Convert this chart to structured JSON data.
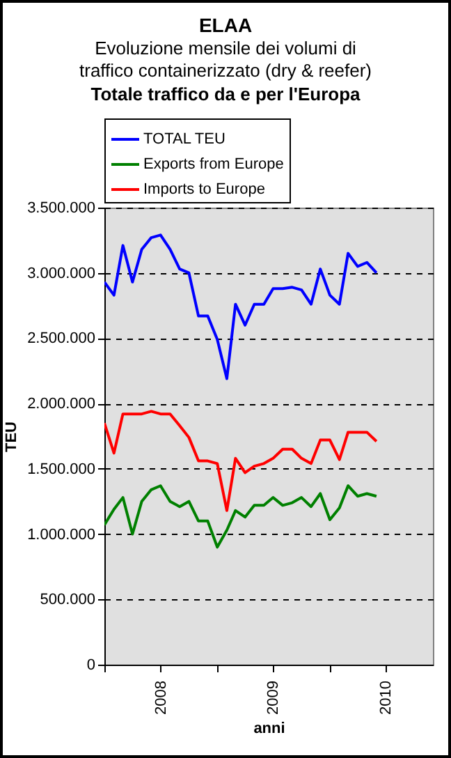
{
  "chart_data": {
    "type": "line",
    "title": "ELAA",
    "subtitle": "Evoluzione mensile dei volumi di traffico containerizzato (dry & reefer)",
    "annotations": [
      "Totale traffico da e per l'Europa"
    ],
    "xlabel": "anni",
    "ylabel": "TEU",
    "x": [
      "2008-01",
      "2008-02",
      "2008-03",
      "2008-04",
      "2008-05",
      "2008-06",
      "2008-07",
      "2008-08",
      "2008-09",
      "2008-10",
      "2008-11",
      "2008-12",
      "2009-01",
      "2009-02",
      "2009-03",
      "2009-04",
      "2009-05",
      "2009-06",
      "2009-07",
      "2009-08",
      "2009-09",
      "2009-10",
      "2009-11",
      "2009-12",
      "2010-01",
      "2010-02",
      "2010-03",
      "2010-04",
      "2010-05",
      "2010-06"
    ],
    "series": [
      {
        "name": "TOTAL TEU",
        "color": "#0000ff",
        "values": [
          2930000,
          2830000,
          3210000,
          2930000,
          3180000,
          3270000,
          3290000,
          3180000,
          3030000,
          3000000,
          2670000,
          2670000,
          2490000,
          2190000,
          2760000,
          2600000,
          2760000,
          2760000,
          2880000,
          2880000,
          2890000,
          2870000,
          2760000,
          3030000,
          2830000,
          2760000,
          3150000,
          3050000,
          3080000,
          3000000
        ]
      },
      {
        "name": "Exports from Europe",
        "color": "#008000",
        "values": [
          1070000,
          1190000,
          1280000,
          1000000,
          1250000,
          1340000,
          1370000,
          1250000,
          1210000,
          1250000,
          1100000,
          1100000,
          900000,
          1030000,
          1180000,
          1130000,
          1220000,
          1220000,
          1280000,
          1220000,
          1240000,
          1280000,
          1210000,
          1310000,
          1110000,
          1200000,
          1370000,
          1290000,
          1310000,
          1290000
        ]
      },
      {
        "name": "Imports to Europe",
        "color": "#ff0000",
        "values": [
          1850000,
          1620000,
          1920000,
          1920000,
          1920000,
          1940000,
          1920000,
          1920000,
          1830000,
          1740000,
          1560000,
          1560000,
          1540000,
          1180000,
          1580000,
          1470000,
          1520000,
          1540000,
          1580000,
          1650000,
          1650000,
          1580000,
          1540000,
          1720000,
          1720000,
          1570000,
          1780000,
          1780000,
          1780000,
          1710000
        ]
      }
    ],
    "xlim": [
      "2008-01",
      "2010-12"
    ],
    "xticks": [
      {
        "value": "2008-01",
        "label": null
      },
      {
        "value": "2008-07",
        "label": "2008"
      },
      {
        "value": "2009-01",
        "label": null
      },
      {
        "value": "2009-07",
        "label": "2009"
      },
      {
        "value": "2010-01",
        "label": null
      },
      {
        "value": "2010-07",
        "label": "2010"
      }
    ],
    "ylim": [
      0,
      3500000
    ],
    "yticks": [
      {
        "value": 0,
        "label": "0"
      },
      {
        "value": 500000,
        "label": "500.000"
      },
      {
        "value": 1000000,
        "label": "1.000.000"
      },
      {
        "value": 1500000,
        "label": "1.500.000"
      },
      {
        "value": 2000000,
        "label": "2.000.000"
      },
      {
        "value": 2500000,
        "label": "2.500.000"
      },
      {
        "value": 3000000,
        "label": "3.000.000"
      },
      {
        "value": 3500000,
        "label": "3.500.000"
      }
    ],
    "grid": "y",
    "legend": "top",
    "line_style": "solid",
    "marker": "none"
  }
}
